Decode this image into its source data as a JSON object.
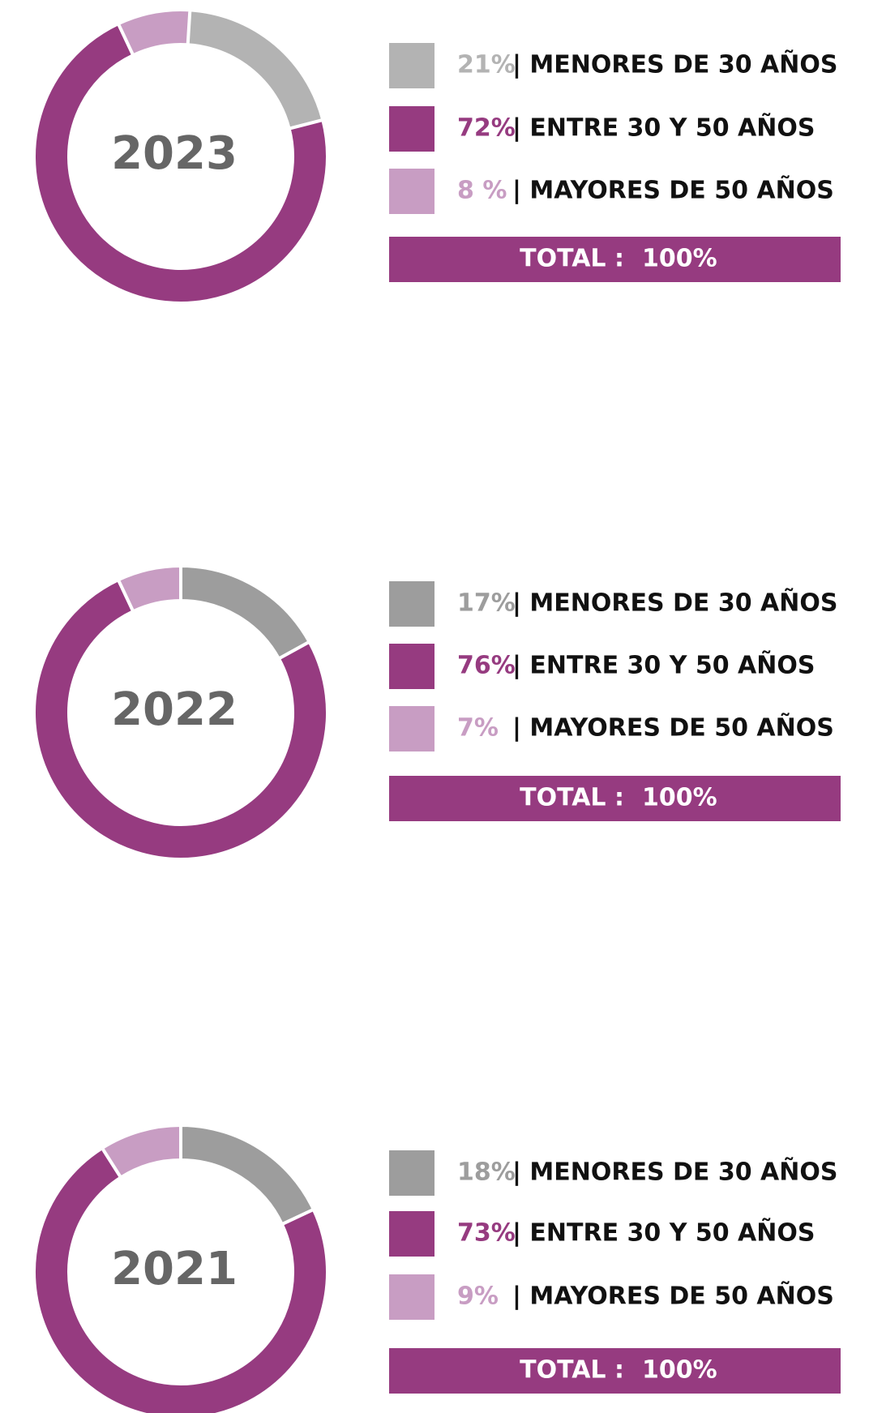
{
  "chart_data": [
    {
      "type": "pie",
      "donut": true,
      "title": "2023",
      "categories": [
        "| MENORES DE 30 AÑOS",
        "| ENTRE 30 Y 50 AÑOS",
        "| MAYORES DE 50 AÑOS"
      ],
      "values": [
        21,
        72,
        8
      ],
      "value_labels": [
        "21%",
        "72%",
        "8 %"
      ],
      "colors": [
        "#b3b3b3",
        "#963b80",
        "#c89dc3"
      ],
      "total_label": "TOTAL :",
      "total": {
        "value": 100,
        "label": "100%"
      }
    },
    {
      "type": "pie",
      "donut": true,
      "title": "2022",
      "categories": [
        "| MENORES DE 30 AÑOS",
        "| ENTRE 30 Y 50 AÑOS",
        "| MAYORES DE 50 AÑOS"
      ],
      "values": [
        17,
        76,
        7
      ],
      "value_labels": [
        "17%",
        "76%",
        "7%"
      ],
      "colors": [
        "#9d9d9d",
        "#963b80",
        "#c89dc3"
      ],
      "total_label": "TOTAL :",
      "total": {
        "value": 100,
        "label": "100%"
      }
    },
    {
      "type": "pie",
      "donut": true,
      "title": "2021",
      "categories": [
        "| MENORES DE 30 AÑOS",
        "| ENTRE 30 Y 50 AÑOS",
        "| MAYORES DE 50 AÑOS"
      ],
      "values": [
        18,
        73,
        9
      ],
      "value_labels": [
        "18%",
        "73%",
        "9%"
      ],
      "colors": [
        "#9d9d9d",
        "#963b80",
        "#c89dc3"
      ],
      "total_label": "TOTAL :",
      "total": {
        "value": 100,
        "label": "100%"
      }
    }
  ]
}
